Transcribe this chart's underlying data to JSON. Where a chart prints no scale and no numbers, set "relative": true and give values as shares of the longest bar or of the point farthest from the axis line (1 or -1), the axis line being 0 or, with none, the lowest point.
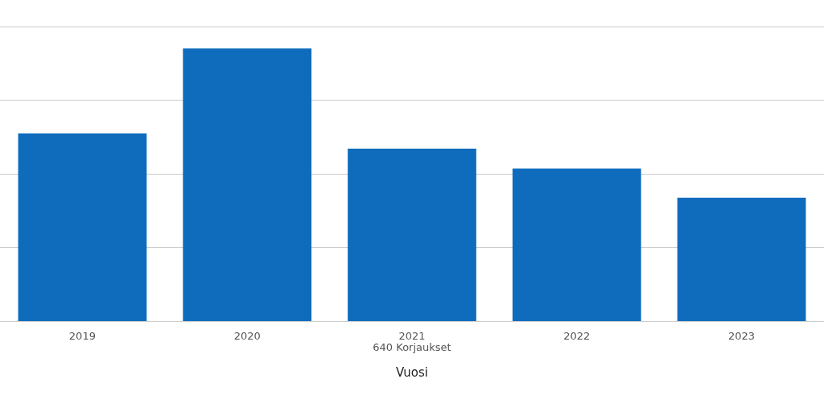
{
  "chart_data": {
    "type": "bar",
    "relative": true,
    "xlabel": "Vuosi",
    "annotations": [
      "640 Korjaukset"
    ],
    "categories": [
      "2019",
      "2020",
      "2021",
      "2022",
      "2023"
    ],
    "values": [
      0.689,
      1,
      0.633,
      0.56,
      0.453
    ],
    "color": "#0f6cbd",
    "grid": "y",
    "legend": false
  }
}
